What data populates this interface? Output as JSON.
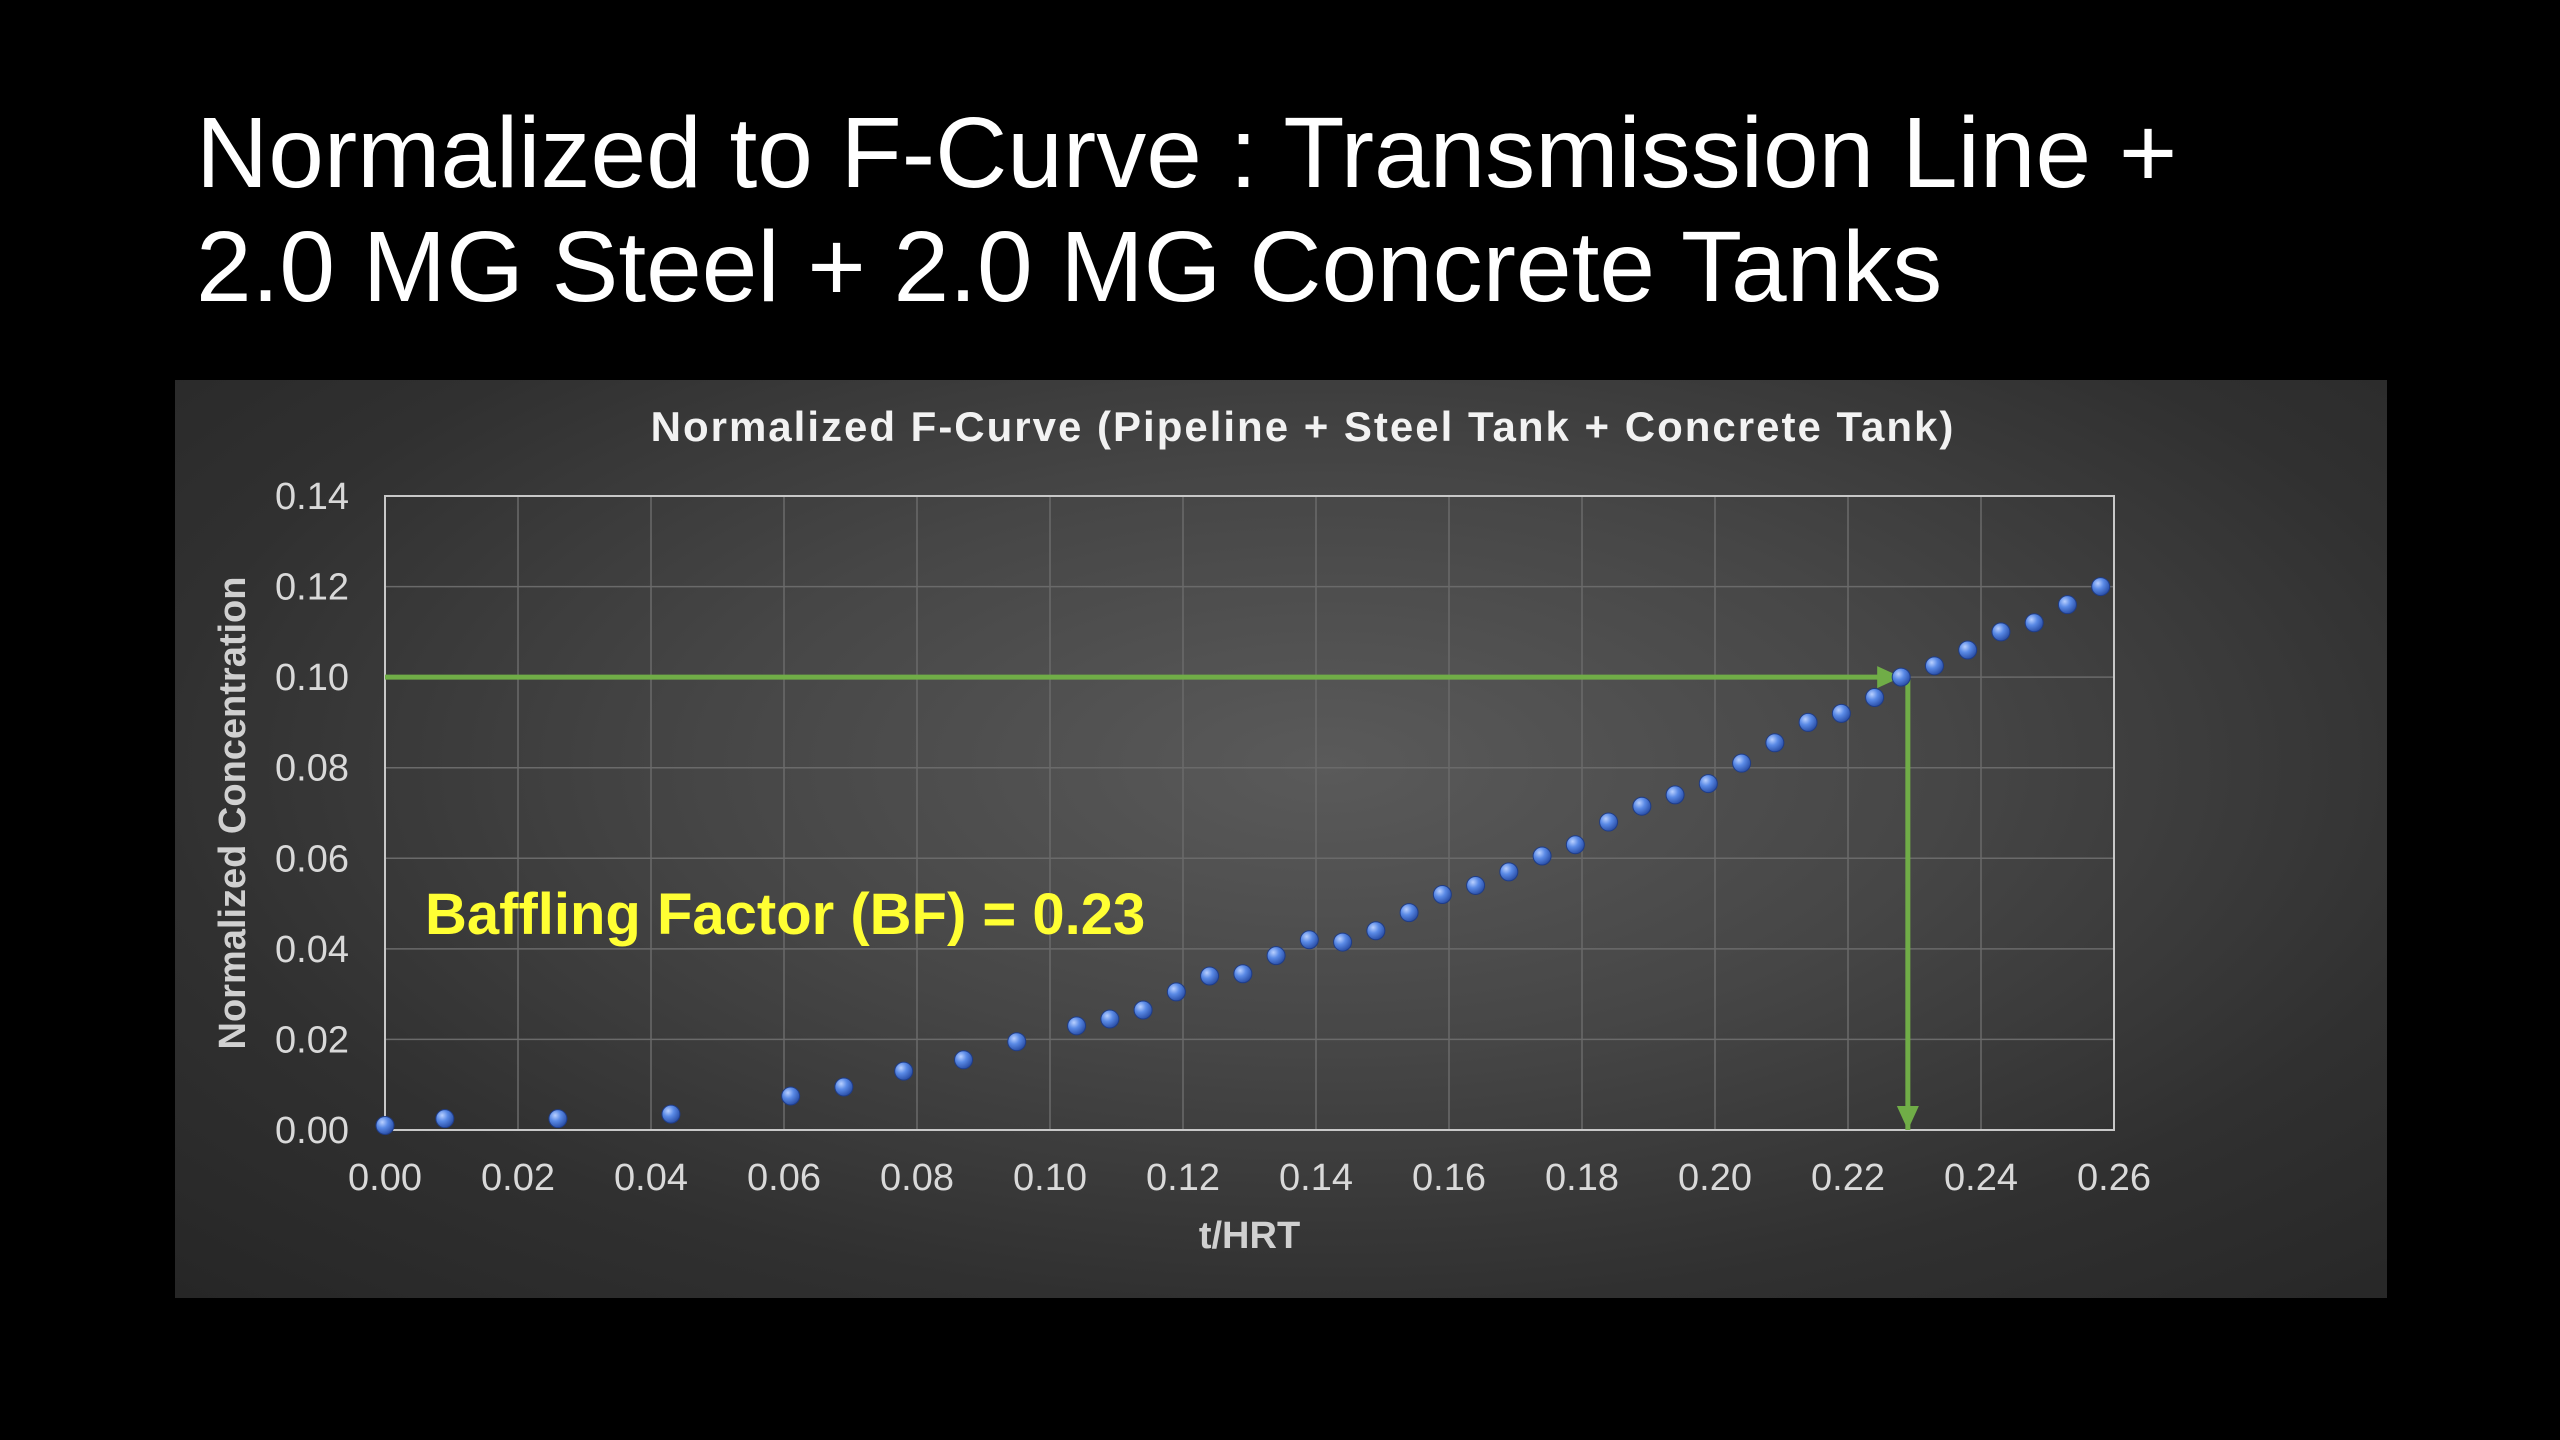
{
  "slide": {
    "title_line1": "Normalized to F-Curve : Transmission Line +",
    "title_line2": "2.0 MG Steel + 2.0 MG Concrete Tanks"
  },
  "colors": {
    "background": "#000000",
    "marker": "#4f7fe0",
    "reference_lines": "#70ad47",
    "annotation": "#ffff33",
    "gridline": "#6a6a6a",
    "plot_border": "#c8c8c8"
  },
  "chart_data": {
    "type": "scatter",
    "title": "Normalized F-Curve (Pipeline + Steel Tank + Concrete Tank)",
    "xlabel": "t/HRT",
    "ylabel": "Normalized Concentration",
    "xlim": [
      0,
      0.26
    ],
    "ylim": [
      0,
      0.14
    ],
    "x_ticks": [
      "0.00",
      "0.02",
      "0.04",
      "0.06",
      "0.08",
      "0.10",
      "0.12",
      "0.14",
      "0.16",
      "0.18",
      "0.20",
      "0.22",
      "0.24",
      "0.26"
    ],
    "y_ticks": [
      "0.00",
      "0.02",
      "0.04",
      "0.06",
      "0.08",
      "0.10",
      "0.12",
      "0.14"
    ],
    "grid": true,
    "legend": false,
    "series": [
      {
        "x": [
          0.0,
          0.009,
          0.026,
          0.043,
          0.061,
          0.069,
          0.078,
          0.087,
          0.095,
          0.104,
          0.109,
          0.114,
          0.119,
          0.124,
          0.129,
          0.134,
          0.139,
          0.144,
          0.149,
          0.154,
          0.159,
          0.164,
          0.169,
          0.174,
          0.179,
          0.184,
          0.189,
          0.194,
          0.199,
          0.204,
          0.209,
          0.214,
          0.219,
          0.224,
          0.228,
          0.233,
          0.238,
          0.243,
          0.248,
          0.253,
          0.258
        ],
        "y": [
          0.001,
          0.0025,
          0.0025,
          0.0035,
          0.0075,
          0.0095,
          0.013,
          0.0155,
          0.0195,
          0.023,
          0.0245,
          0.0265,
          0.0305,
          0.034,
          0.0345,
          0.0385,
          0.042,
          0.0415,
          0.044,
          0.048,
          0.052,
          0.054,
          0.057,
          0.0605,
          0.063,
          0.068,
          0.0715,
          0.074,
          0.0765,
          0.081,
          0.0855,
          0.09,
          0.092,
          0.0955,
          0.1,
          0.1025,
          0.106,
          0.11,
          0.112,
          0.116,
          0.12
        ]
      }
    ],
    "reference_lines": [
      {
        "from": [
          0,
          0.1
        ],
        "to": [
          0.228,
          0.1
        ],
        "arrow": "end"
      },
      {
        "from": [
          0.229,
          0.1
        ],
        "to": [
          0.229,
          0
        ],
        "arrow": "end"
      }
    ],
    "annotation": "Baffling Factor (BF) = 0.23"
  }
}
